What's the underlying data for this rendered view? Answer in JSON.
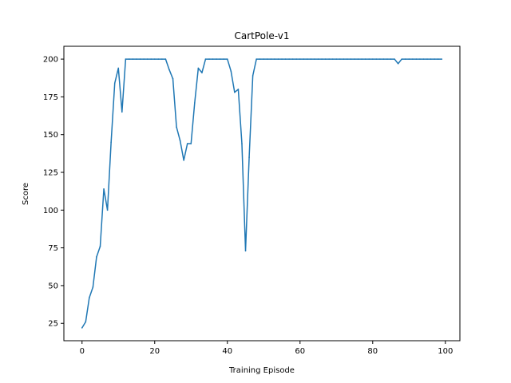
{
  "chart_data": {
    "type": "line",
    "title": "CartPole-v1",
    "xlabel": "Training Episode",
    "ylabel": "Score",
    "xlim": [
      -5,
      104
    ],
    "ylim": [
      13.5,
      208.5
    ],
    "grid": false,
    "xticks": [
      0,
      20,
      40,
      60,
      80,
      100
    ],
    "yticks": [
      25,
      50,
      75,
      100,
      125,
      150,
      175,
      200
    ],
    "series": [
      {
        "name": "Score",
        "color": "#1f77b4",
        "x": [
          0,
          1,
          2,
          3,
          4,
          5,
          6,
          7,
          8,
          9,
          10,
          11,
          12,
          13,
          14,
          15,
          16,
          17,
          18,
          19,
          20,
          21,
          22,
          23,
          24,
          25,
          26,
          27,
          28,
          29,
          30,
          31,
          32,
          33,
          34,
          35,
          36,
          37,
          38,
          39,
          40,
          41,
          42,
          43,
          44,
          45,
          46,
          47,
          48,
          49,
          50,
          51,
          52,
          53,
          54,
          55,
          56,
          57,
          58,
          59,
          60,
          61,
          62,
          63,
          64,
          65,
          66,
          67,
          68,
          69,
          70,
          71,
          72,
          73,
          74,
          75,
          76,
          77,
          78,
          79,
          80,
          81,
          82,
          83,
          84,
          85,
          86,
          87,
          88,
          89,
          90,
          91,
          92,
          93,
          94,
          95,
          96,
          97,
          98,
          99
        ],
        "values": [
          22,
          26,
          42,
          49,
          69,
          76,
          114,
          100,
          145,
          184,
          194,
          165,
          200,
          200,
          200,
          200,
          200,
          200,
          200,
          200,
          200,
          200,
          200,
          200,
          193,
          187,
          155,
          146,
          133,
          144,
          144,
          171,
          194,
          191,
          200,
          200,
          200,
          200,
          200,
          200,
          200,
          192,
          178,
          180,
          144,
          73,
          135,
          189,
          200,
          200,
          200,
          200,
          200,
          200,
          200,
          200,
          200,
          200,
          200,
          200,
          200,
          200,
          200,
          200,
          200,
          200,
          200,
          200,
          200,
          200,
          200,
          200,
          200,
          200,
          200,
          200,
          200,
          200,
          200,
          200,
          200,
          200,
          200,
          200,
          200,
          200,
          200,
          197,
          200,
          200,
          200,
          200,
          200,
          200,
          200,
          200,
          200,
          200,
          200,
          200
        ]
      }
    ]
  }
}
